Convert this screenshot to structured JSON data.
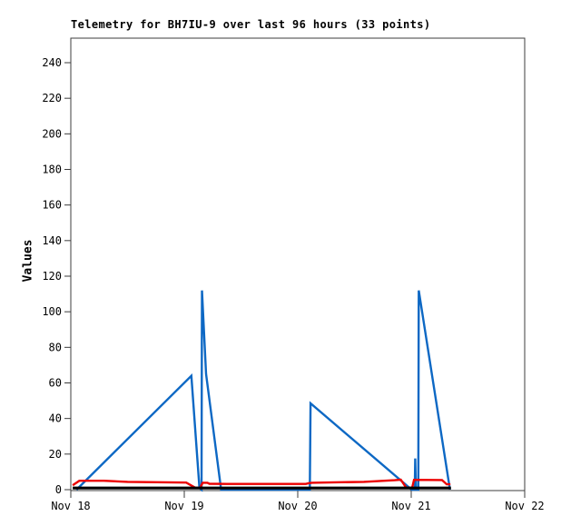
{
  "page": {
    "background": "#ffffff"
  },
  "chart_data": {
    "type": "line",
    "title": "Telemetry for BH7IU-9 over last 96 hours (33 points)",
    "ylabel": "Values",
    "xlabel": "",
    "x_unit": "hours since Nov 18 00:00",
    "xlim": [
      0,
      96
    ],
    "ylim": [
      0,
      254
    ],
    "grid": false,
    "legend": "none",
    "frame_color": "#3d3d3d",
    "tick_color": "#3d3d3d",
    "yticks": [
      0,
      20,
      40,
      60,
      80,
      100,
      120,
      140,
      160,
      180,
      200,
      220,
      240
    ],
    "xticks": [
      {
        "h": 0,
        "label": "Nov 18"
      },
      {
        "h": 24,
        "label": "Nov 19"
      },
      {
        "h": 48,
        "label": "Nov 20"
      },
      {
        "h": 72,
        "label": "Nov 21"
      },
      {
        "h": 96,
        "label": "Nov 22"
      }
    ],
    "series": [
      {
        "name": "telemetry-value-blue",
        "color": "#0d68c4",
        "width": 2.4,
        "points": [
          [
            1.2,
            0
          ],
          [
            25.5,
            64
          ],
          [
            27.2,
            1
          ],
          [
            27.65,
            0
          ],
          [
            27.75,
            112
          ],
          [
            28.6,
            65
          ],
          [
            31.8,
            0
          ],
          [
            50.55,
            0
          ],
          [
            50.7,
            48.5
          ],
          [
            72.1,
            0
          ],
          [
            72.75,
            0
          ],
          [
            72.85,
            17.5
          ],
          [
            73.0,
            0
          ],
          [
            73.5,
            0
          ],
          [
            73.6,
            112
          ],
          [
            80.2,
            0
          ]
        ]
      },
      {
        "name": "telemetry-value-red",
        "color": "#ec0000",
        "width": 2.4,
        "points": [
          [
            0.4,
            2.5
          ],
          [
            1.8,
            5.0
          ],
          [
            7,
            5.0
          ],
          [
            12,
            4.4
          ],
          [
            24.4,
            4.0
          ],
          [
            26.3,
            1.1
          ],
          [
            27.3,
            0.9
          ],
          [
            27.9,
            3.9
          ],
          [
            28.9,
            3.9
          ],
          [
            29.3,
            3.3
          ],
          [
            33,
            3.2
          ],
          [
            49.7,
            3.2
          ],
          [
            50.4,
            3.7
          ],
          [
            51,
            3.9
          ],
          [
            62,
            4.4
          ],
          [
            68.5,
            5.3
          ],
          [
            69.8,
            5.6
          ],
          [
            70.9,
            1.2
          ],
          [
            72.2,
            1.0
          ],
          [
            72.6,
            5.5
          ],
          [
            78.5,
            5.4
          ],
          [
            79.5,
            3.0
          ],
          [
            80.3,
            3.0
          ]
        ]
      },
      {
        "name": "telemetry-value-black",
        "color": "#000000",
        "width": 3.2,
        "points": [
          [
            0.4,
            0.9
          ],
          [
            80.4,
            0.9
          ]
        ]
      }
    ]
  }
}
